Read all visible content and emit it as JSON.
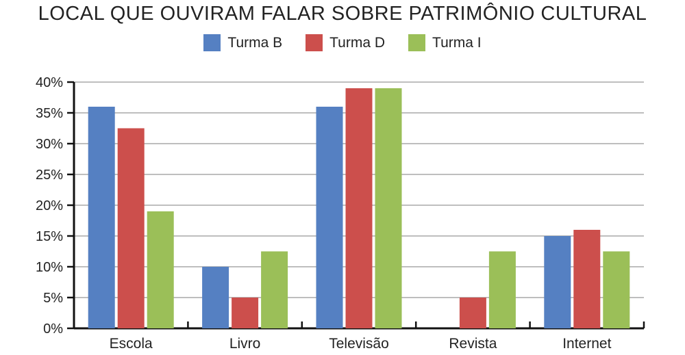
{
  "chart_data": {
    "type": "bar",
    "title": "LOCAL QUE OUVIRAM FALAR SOBRE PATRIMÔNIO CULTURAL",
    "xlabel": "",
    "ylabel": "",
    "categories": [
      "Escola",
      "Livro",
      "Televisão",
      "Revista",
      "Internet"
    ],
    "series": [
      {
        "name": "Turma B",
        "color": "#5580c2",
        "values": [
          36,
          10,
          36,
          0,
          15
        ]
      },
      {
        "name": "Turma D",
        "color": "#cc4f4c",
        "values": [
          32.5,
          5,
          39,
          5,
          16
        ]
      },
      {
        "name": "Turma I",
        "color": "#9bbf58",
        "values": [
          19,
          12.5,
          39,
          12.5,
          12.5
        ]
      }
    ],
    "ylim": [
      0,
      40
    ],
    "yticks": [
      0,
      5,
      10,
      15,
      20,
      25,
      30,
      35,
      40
    ],
    "ytick_labels": [
      "0%",
      "5%",
      "10%",
      "15%",
      "20%",
      "25%",
      "30%",
      "35%",
      "40%"
    ],
    "grid": true,
    "legend_position": "top-center"
  }
}
